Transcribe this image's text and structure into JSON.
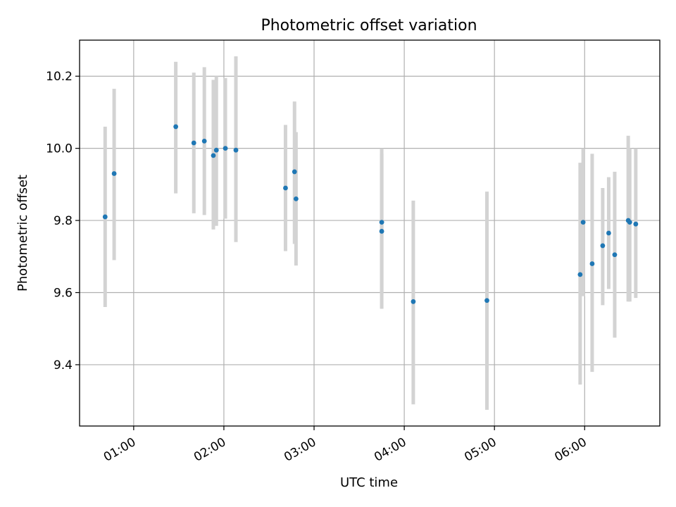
{
  "chart_data": {
    "type": "scatter",
    "title": "Photometric offset variation",
    "xlabel": "UTC time",
    "ylabel": "Photometric offset",
    "x_type": "time",
    "xlim": [
      "00:24",
      "06:50"
    ],
    "ylim": [
      9.23,
      10.3
    ],
    "x_ticks": [
      "01:00",
      "02:00",
      "03:00",
      "04:00",
      "05:00",
      "06:00"
    ],
    "y_ticks": [
      9.4,
      9.6,
      9.8,
      10.0,
      10.2
    ],
    "grid": true,
    "colors": {
      "point": "#1f77b4",
      "error_bar": "#d3d3d3"
    },
    "series": [
      {
        "points": [
          {
            "x": "00:41",
            "y": 9.81,
            "low": 9.56,
            "high": 10.06
          },
          {
            "x": "00:47",
            "y": 9.93,
            "low": 9.69,
            "high": 10.165
          },
          {
            "x": "01:28",
            "y": 10.06,
            "low": 9.875,
            "high": 10.24
          },
          {
            "x": "01:40",
            "y": 10.015,
            "low": 9.82,
            "high": 10.21
          },
          {
            "x": "01:47",
            "y": 10.02,
            "low": 9.815,
            "high": 10.225
          },
          {
            "x": "01:53",
            "y": 9.98,
            "low": 9.775,
            "high": 10.19
          },
          {
            "x": "01:55",
            "y": 9.995,
            "low": 9.785,
            "high": 10.2
          },
          {
            "x": "02:01",
            "y": 10.0,
            "low": 9.805,
            "high": 10.195
          },
          {
            "x": "02:08",
            "y": 9.995,
            "low": 9.74,
            "high": 10.255
          },
          {
            "x": "02:41",
            "y": 9.89,
            "low": 9.715,
            "high": 10.065
          },
          {
            "x": "02:47",
            "y": 9.935,
            "low": 9.735,
            "high": 10.13
          },
          {
            "x": "02:48",
            "y": 9.86,
            "low": 9.675,
            "high": 10.045
          },
          {
            "x": "03:45",
            "y": 9.795,
            "low": 9.6,
            "high": 10.0
          },
          {
            "x": "03:45",
            "y": 9.77,
            "low": 9.555,
            "high": 9.985
          },
          {
            "x": "04:06",
            "y": 9.575,
            "low": 9.29,
            "high": 9.855
          },
          {
            "x": "04:55",
            "y": 9.578,
            "low": 9.275,
            "high": 9.88
          },
          {
            "x": "05:57",
            "y": 9.65,
            "low": 9.345,
            "high": 9.96
          },
          {
            "x": "05:59",
            "y": 9.795,
            "low": 9.59,
            "high": 10.0
          },
          {
            "x": "06:05",
            "y": 9.68,
            "low": 9.38,
            "high": 9.985
          },
          {
            "x": "06:12",
            "y": 9.73,
            "low": 9.565,
            "high": 9.89
          },
          {
            "x": "06:16",
            "y": 9.765,
            "low": 9.61,
            "high": 9.92
          },
          {
            "x": "06:20",
            "y": 9.705,
            "low": 9.475,
            "high": 9.935
          },
          {
            "x": "06:29",
            "y": 9.8,
            "low": 9.575,
            "high": 10.035
          },
          {
            "x": "06:30",
            "y": 9.795,
            "low": 9.575,
            "high": 10.0
          },
          {
            "x": "06:34",
            "y": 9.79,
            "low": 9.585,
            "high": 10.0
          }
        ]
      }
    ]
  }
}
